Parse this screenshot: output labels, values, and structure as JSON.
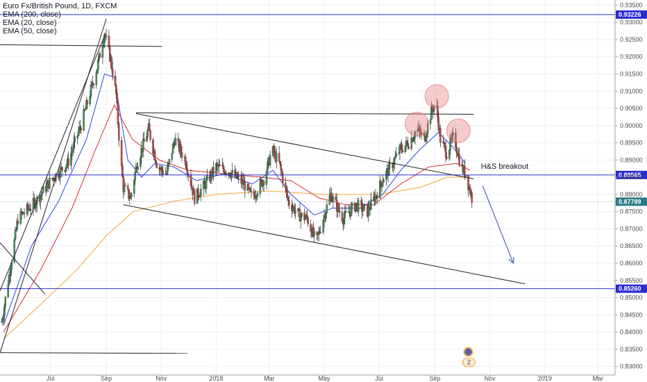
{
  "chart_data": {
    "type": "candlestick",
    "title": "Euro Fx/British Pound, 1D, FXCM",
    "indicators": [
      "EMA (200, close)",
      "EMA (20, close)",
      "EMA (50, close)"
    ],
    "indicator_colors": {
      "ema20": "#2b44e0",
      "ema50": "#d42a2a",
      "ema200": "#f2a93b"
    },
    "candle_colors": {
      "up": "#3f8f5a",
      "down": "#c24a4a",
      "wick": "#222222"
    },
    "ylim": [
      0.8275,
      0.9365
    ],
    "y_ticks": [
      0.83,
      0.835,
      0.84,
      0.845,
      0.85,
      0.855,
      0.86,
      0.865,
      0.87,
      0.875,
      0.88,
      0.885,
      0.89,
      0.895,
      0.9,
      0.905,
      0.91,
      0.915,
      0.92,
      0.925,
      0.93,
      0.935
    ],
    "y_tick_labels": [
      "0.83000",
      "0.83500",
      "0.84000",
      "0.84500",
      "0.85000",
      "0.85500",
      "0.86000",
      "0.86500",
      "0.87000",
      "0.87500",
      "0.88000",
      "0.88500",
      "0.89000",
      "0.89500",
      "0.90000",
      "0.90500",
      "0.91000",
      "0.91500",
      "0.92000",
      "0.92500",
      "0.93000",
      "0.93500"
    ],
    "x_range": [
      "2017-05-06",
      "2019-03-20"
    ],
    "x_ticks": [
      {
        "label": "Jul",
        "date": "2017-07-01"
      },
      {
        "label": "Sep",
        "date": "2017-09-01"
      },
      {
        "label": "Nov",
        "date": "2017-11-01"
      },
      {
        "label": "2018",
        "date": "2018-01-01"
      },
      {
        "label": "Mar",
        "date": "2018-03-01"
      },
      {
        "label": "May",
        "date": "2018-05-01"
      },
      {
        "label": "Jul",
        "date": "2018-07-01"
      },
      {
        "label": "Sep",
        "date": "2018-09-01"
      },
      {
        "label": "Nov",
        "date": "2018-11-01"
      },
      {
        "label": "2019",
        "date": "2019-01-01"
      },
      {
        "label": "Mar",
        "date": "2019-03-01"
      }
    ],
    "key_price_path": [
      {
        "date": "2017-05-08",
        "price": 0.843
      },
      {
        "date": "2017-05-26",
        "price": 0.873
      },
      {
        "date": "2017-06-15",
        "price": 0.878
      },
      {
        "date": "2017-07-01",
        "price": 0.884
      },
      {
        "date": "2017-07-20",
        "price": 0.889
      },
      {
        "date": "2017-08-05",
        "price": 0.901
      },
      {
        "date": "2017-08-22",
        "price": 0.917
      },
      {
        "date": "2017-08-30",
        "price": 0.927
      },
      {
        "date": "2017-09-06",
        "price": 0.919
      },
      {
        "date": "2017-09-12",
        "price": 0.909
      },
      {
        "date": "2017-09-16",
        "price": 0.893
      },
      {
        "date": "2017-09-20",
        "price": 0.882
      },
      {
        "date": "2017-09-28",
        "price": 0.879
      },
      {
        "date": "2017-10-05",
        "price": 0.889
      },
      {
        "date": "2017-10-18",
        "price": 0.899
      },
      {
        "date": "2017-10-28",
        "price": 0.888
      },
      {
        "date": "2017-11-07",
        "price": 0.886
      },
      {
        "date": "2017-11-16",
        "price": 0.896
      },
      {
        "date": "2017-11-28",
        "price": 0.89
      },
      {
        "date": "2017-12-08",
        "price": 0.879
      },
      {
        "date": "2017-12-20",
        "price": 0.883
      },
      {
        "date": "2018-01-01",
        "price": 0.888
      },
      {
        "date": "2018-01-14",
        "price": 0.887
      },
      {
        "date": "2018-02-01",
        "price": 0.883
      },
      {
        "date": "2018-02-10",
        "price": 0.879
      },
      {
        "date": "2018-02-24",
        "price": 0.885
      },
      {
        "date": "2018-03-04",
        "price": 0.893
      },
      {
        "date": "2018-03-12",
        "price": 0.889
      },
      {
        "date": "2018-03-22",
        "price": 0.878
      },
      {
        "date": "2018-04-03",
        "price": 0.874
      },
      {
        "date": "2018-04-12",
        "price": 0.873
      },
      {
        "date": "2018-04-22",
        "price": 0.866
      },
      {
        "date": "2018-04-30",
        "price": 0.873
      },
      {
        "date": "2018-05-08",
        "price": 0.88
      },
      {
        "date": "2018-05-22",
        "price": 0.873
      },
      {
        "date": "2018-06-05",
        "price": 0.877
      },
      {
        "date": "2018-06-18",
        "price": 0.875
      },
      {
        "date": "2018-06-28",
        "price": 0.88
      },
      {
        "date": "2018-07-06",
        "price": 0.885
      },
      {
        "date": "2018-07-14",
        "price": 0.888
      },
      {
        "date": "2018-07-24",
        "price": 0.893
      },
      {
        "date": "2018-08-03",
        "price": 0.895
      },
      {
        "date": "2018-08-12",
        "price": 0.899
      },
      {
        "date": "2018-08-20",
        "price": 0.896
      },
      {
        "date": "2018-08-28",
        "price": 0.904
      },
      {
        "date": "2018-09-02",
        "price": 0.907
      },
      {
        "date": "2018-09-07",
        "price": 0.896
      },
      {
        "date": "2018-09-14",
        "price": 0.892
      },
      {
        "date": "2018-09-22",
        "price": 0.897
      },
      {
        "date": "2018-09-30",
        "price": 0.888
      },
      {
        "date": "2018-10-05",
        "price": 0.886
      },
      {
        "date": "2018-10-12",
        "price": 0.879
      }
    ],
    "ema20_path": [
      {
        "date": "2017-05-10",
        "price": 0.842
      },
      {
        "date": "2017-06-10",
        "price": 0.865
      },
      {
        "date": "2017-07-10",
        "price": 0.878
      },
      {
        "date": "2017-08-10",
        "price": 0.896
      },
      {
        "date": "2017-08-30",
        "price": 0.915
      },
      {
        "date": "2017-09-10",
        "price": 0.914
      },
      {
        "date": "2017-09-25",
        "price": 0.89
      },
      {
        "date": "2017-10-10",
        "price": 0.885
      },
      {
        "date": "2017-10-25",
        "price": 0.889
      },
      {
        "date": "2017-11-15",
        "price": 0.888
      },
      {
        "date": "2017-12-10",
        "price": 0.884
      },
      {
        "date": "2018-01-10",
        "price": 0.886
      },
      {
        "date": "2018-02-10",
        "price": 0.883
      },
      {
        "date": "2018-03-05",
        "price": 0.887
      },
      {
        "date": "2018-03-25",
        "price": 0.88
      },
      {
        "date": "2018-04-20",
        "price": 0.874
      },
      {
        "date": "2018-05-10",
        "price": 0.876
      },
      {
        "date": "2018-06-10",
        "price": 0.876
      },
      {
        "date": "2018-07-05",
        "price": 0.88
      },
      {
        "date": "2018-07-25",
        "price": 0.887
      },
      {
        "date": "2018-08-15",
        "price": 0.893
      },
      {
        "date": "2018-09-05",
        "price": 0.898
      },
      {
        "date": "2018-09-20",
        "price": 0.894
      },
      {
        "date": "2018-10-05",
        "price": 0.889
      }
    ],
    "ema50_path": [
      {
        "date": "2017-05-10",
        "price": 0.84
      },
      {
        "date": "2017-06-20",
        "price": 0.858
      },
      {
        "date": "2017-07-25",
        "price": 0.876
      },
      {
        "date": "2017-08-20",
        "price": 0.893
      },
      {
        "date": "2017-09-10",
        "price": 0.906
      },
      {
        "date": "2017-09-30",
        "price": 0.896
      },
      {
        "date": "2017-10-30",
        "price": 0.89
      },
      {
        "date": "2017-12-01",
        "price": 0.887
      },
      {
        "date": "2018-01-10",
        "price": 0.886
      },
      {
        "date": "2018-02-20",
        "price": 0.885
      },
      {
        "date": "2018-03-25",
        "price": 0.884
      },
      {
        "date": "2018-04-25",
        "price": 0.879
      },
      {
        "date": "2018-05-25",
        "price": 0.877
      },
      {
        "date": "2018-06-25",
        "price": 0.877
      },
      {
        "date": "2018-07-25",
        "price": 0.883
      },
      {
        "date": "2018-08-25",
        "price": 0.888
      },
      {
        "date": "2018-09-25",
        "price": 0.889
      },
      {
        "date": "2018-10-10",
        "price": 0.887
      }
    ],
    "ema200_path": [
      {
        "date": "2017-05-10",
        "price": 0.838
      },
      {
        "date": "2017-06-20",
        "price": 0.848
      },
      {
        "date": "2017-07-30",
        "price": 0.858
      },
      {
        "date": "2017-09-01",
        "price": 0.868
      },
      {
        "date": "2017-10-01",
        "price": 0.875
      },
      {
        "date": "2017-11-15",
        "price": 0.878
      },
      {
        "date": "2018-01-01",
        "price": 0.88
      },
      {
        "date": "2018-03-01",
        "price": 0.881
      },
      {
        "date": "2018-05-01",
        "price": 0.88
      },
      {
        "date": "2018-07-01",
        "price": 0.88
      },
      {
        "date": "2018-08-15",
        "price": 0.882
      },
      {
        "date": "2018-09-15",
        "price": 0.885
      },
      {
        "date": "2018-10-10",
        "price": 0.885
      }
    ],
    "horizontal_levels": [
      {
        "price": 0.93226,
        "label": "0.93226",
        "color": "#2b2bd4"
      },
      {
        "price": 0.88565,
        "label": "0.88565",
        "color": "#2b2bd4"
      },
      {
        "price": 0.8526,
        "label": "0.85260",
        "color": "#2b2bd4"
      }
    ],
    "last_price": {
      "price": 0.87789,
      "label": "0.87789",
      "color": "#2a7a86"
    },
    "trendlines": [
      {
        "from": {
          "date": "2017-05-06",
          "price": 0.834
        },
        "to": {
          "date": "2017-09-01",
          "price": 0.931
        }
      },
      {
        "from": {
          "date": "2017-05-06",
          "price": 0.852
        },
        "to": {
          "date": "2017-08-30",
          "price": 0.926
        }
      },
      {
        "from": {
          "date": "2017-05-06",
          "price": 0.866
        },
        "to": {
          "date": "2017-06-25",
          "price": 0.851
        }
      },
      {
        "from": {
          "date": "2017-05-06",
          "price": 0.9235
        },
        "to": {
          "date": "2017-11-02",
          "price": 0.923
        }
      },
      {
        "from": {
          "date": "2017-05-06",
          "price": 0.834
        },
        "to": {
          "date": "2017-11-30",
          "price": 0.8338
        }
      },
      {
        "from": {
          "date": "2017-10-04",
          "price": 0.9035
        },
        "to": {
          "date": "2018-10-14",
          "price": 0.8845
        }
      },
      {
        "from": {
          "date": "2017-09-20",
          "price": 0.877
        },
        "to": {
          "date": "2018-12-10",
          "price": 0.854
        }
      },
      {
        "from": {
          "date": "2017-10-04",
          "price": 0.9037
        },
        "to": {
          "date": "2018-10-14",
          "price": 0.9033
        }
      }
    ],
    "shoulders": [
      {
        "date": "2018-08-12",
        "price": 0.9005
      },
      {
        "date": "2018-09-03",
        "price": 0.9085
      },
      {
        "date": "2018-09-27",
        "price": 0.8985
      }
    ],
    "arrow": {
      "from": {
        "date": "2018-10-24",
        "price": 0.8825
      },
      "to": {
        "date": "2018-11-27",
        "price": 0.86
      }
    },
    "annotation": {
      "text": "H&S breakout",
      "date": "2018-10-22",
      "price": 0.8875
    },
    "event_badge": {
      "text": "2",
      "date": "2018-10-08",
      "price": 0.8312
    }
  }
}
